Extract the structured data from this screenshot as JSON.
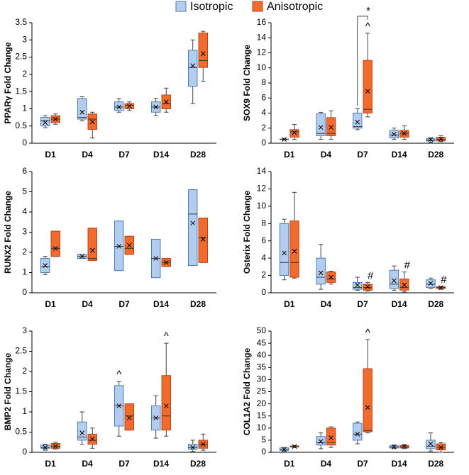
{
  "legend": [
    {
      "name": "Isotropic",
      "color": "#b4cdee"
    },
    {
      "name": "Anisotropic",
      "color": "#f26a2c"
    }
  ],
  "chart_data": [
    {
      "type": "box",
      "ylabel": "PPARγ Fold Change",
      "categories": [
        "D1",
        "D4",
        "D7",
        "D14",
        "D28"
      ],
      "ylim": [
        0,
        3.5
      ],
      "yticks": [
        0,
        0.5,
        1,
        1.5,
        2,
        2.5,
        3,
        3.5
      ],
      "series": [
        {
          "values": [
            {
              "min": 0.45,
              "q1": 0.5,
              "median": 0.65,
              "q3": 0.75,
              "max": 0.8,
              "mean": 0.6
            },
            {
              "min": 0.65,
              "q1": 0.7,
              "median": 0.75,
              "q3": 1.3,
              "max": 1.35,
              "mean": 0.9
            },
            {
              "min": 0.9,
              "q1": 0.95,
              "median": 1.05,
              "q3": 1.2,
              "max": 1.3,
              "mean": 1.05
            },
            {
              "min": 0.8,
              "q1": 0.9,
              "median": 1.05,
              "q3": 1.2,
              "max": 1.3,
              "mean": 1.05
            },
            {
              "min": 1.15,
              "q1": 1.65,
              "median": 2.2,
              "q3": 2.7,
              "max": 3.0,
              "mean": 2.25
            }
          ]
        },
        {
          "values": [
            {
              "min": 0.55,
              "q1": 0.6,
              "median": 0.7,
              "q3": 0.8,
              "max": 0.85,
              "mean": 0.7
            },
            {
              "min": 0.15,
              "q1": 0.4,
              "median": 0.7,
              "q3": 0.85,
              "max": 0.9,
              "mean": 0.62
            },
            {
              "min": 0.95,
              "q1": 1.0,
              "median": 1.1,
              "q3": 1.15,
              "max": 1.2,
              "mean": 1.08
            },
            {
              "min": 0.9,
              "q1": 1.0,
              "median": 1.15,
              "q3": 1.4,
              "max": 1.6,
              "mean": 1.2
            },
            {
              "min": 1.8,
              "q1": 2.2,
              "median": 2.4,
              "q3": 3.2,
              "max": 3.25,
              "mean": 2.6
            }
          ]
        }
      ]
    },
    {
      "type": "box",
      "ylabel": "SOX9 Fold Change",
      "categories": [
        "D1",
        "D4",
        "D7",
        "D14",
        "D28"
      ],
      "ylim": [
        0,
        16
      ],
      "yticks": [
        0,
        2,
        4,
        6,
        8,
        10,
        12,
        14,
        16
      ],
      "comparisons": [
        null,
        null,
        "*",
        null,
        null
      ],
      "series": [
        {
          "values": [
            {
              "min": 0.45,
              "q1": 0.5,
              "median": 0.5,
              "q3": 0.55,
              "max": 0.6,
              "mean": 0.5
            },
            {
              "min": 0.5,
              "q1": 1,
              "median": 1.3,
              "q3": 3.9,
              "max": 4.1,
              "mean": 2.1
            },
            {
              "min": 1.8,
              "q1": 2,
              "median": 2.2,
              "q3": 4,
              "max": 4.6,
              "mean": 2.8
            },
            {
              "min": 0.5,
              "q1": 0.7,
              "median": 1.1,
              "q3": 1.7,
              "max": 2,
              "mean": 1.2
            },
            {
              "min": 0.1,
              "q1": 0.3,
              "median": 0.4,
              "q3": 0.6,
              "max": 0.7,
              "mean": 0.5
            }
          ]
        },
        {
          "annotations": [
            null,
            null,
            "^",
            null,
            null
          ],
          "values": [
            {
              "min": 0.5,
              "q1": 0.8,
              "median": 1.5,
              "q3": 1.8,
              "max": 2.5,
              "mean": 1.4
            },
            {
              "min": 0.5,
              "q1": 1,
              "median": 1.3,
              "q3": 3.4,
              "max": 4.3,
              "mean": 2.1
            },
            {
              "min": 3.5,
              "q1": 4,
              "median": 4.5,
              "q3": 11,
              "max": 14.6,
              "mean": 6.9
            },
            {
              "min": 0.5,
              "q1": 0.8,
              "median": 1.3,
              "q3": 1.7,
              "max": 2.3,
              "mean": 1.3
            },
            {
              "min": 0.2,
              "q1": 0.3,
              "median": 0.5,
              "q3": 0.8,
              "max": 1,
              "mean": 0.55
            }
          ]
        }
      ]
    },
    {
      "type": "box",
      "ylabel": "RUNX2 Fold Change",
      "categories": [
        "D1",
        "D4",
        "D7",
        "D14",
        "D28"
      ],
      "ylim": [
        0,
        6
      ],
      "yticks": [
        0,
        1,
        2,
        3,
        4,
        5,
        6
      ],
      "series": [
        {
          "values": [
            {
              "min": 0.9,
              "q1": 1,
              "median": 1.3,
              "q3": 1.7,
              "max": 1.8,
              "mean": 1.35
            },
            {
              "min": 1.7,
              "q1": 1.7,
              "median": 1.8,
              "q3": 1.9,
              "max": 1.9,
              "mean": 1.8
            },
            {
              "min": 1.1,
              "q1": 1.1,
              "median": 2.3,
              "q3": 3.55,
              "max": 3.55,
              "mean": 2.3
            },
            {
              "min": 0.75,
              "q1": 0.75,
              "median": 1.7,
              "q3": 2.65,
              "max": 2.65,
              "mean": 1.7
            },
            {
              "min": 1.35,
              "q1": 1.35,
              "median": 3.9,
              "q3": 5.1,
              "max": 5.1,
              "mean": 3.45
            }
          ]
        },
        {
          "values": [
            {
              "min": 1.8,
              "q1": 1.8,
              "median": 2.2,
              "q3": 3.05,
              "max": 3.05,
              "mean": 2.2
            },
            {
              "min": 1.6,
              "q1": 1.6,
              "median": 1.7,
              "q3": 3.2,
              "max": 3.2,
              "mean": 2.1
            },
            {
              "min": 1.9,
              "q1": 1.9,
              "median": 2.2,
              "q3": 2.8,
              "max": 2.8,
              "mean": 2.35
            },
            {
              "min": 1.3,
              "q1": 1.3,
              "median": 1.5,
              "q3": 1.7,
              "max": 1.7,
              "mean": 1.5
            },
            {
              "min": 1.5,
              "q1": 1.5,
              "median": 2.75,
              "q3": 3.7,
              "max": 3.7,
              "mean": 2.65
            }
          ]
        }
      ]
    },
    {
      "type": "box",
      "ylabel": "Osterix Fold Change",
      "categories": [
        "D1",
        "D4",
        "D7",
        "D14",
        "D28"
      ],
      "ylim": [
        0,
        14
      ],
      "yticks": [
        0,
        2,
        4,
        6,
        8,
        10,
        12,
        14
      ],
      "series": [
        {
          "values": [
            {
              "min": 1.5,
              "q1": 2,
              "median": 3.5,
              "q3": 8,
              "max": 8.5,
              "mean": 4.6
            },
            {
              "min": 0.4,
              "q1": 1,
              "median": 1.8,
              "q3": 4,
              "max": 5.6,
              "mean": 2.3
            },
            {
              "min": 0.3,
              "q1": 0.4,
              "median": 0.6,
              "q3": 1.2,
              "max": 1.8,
              "mean": 0.9
            },
            {
              "min": 0.3,
              "q1": 0.5,
              "median": 1,
              "q3": 2.6,
              "max": 3.1,
              "mean": 1.4
            },
            {
              "min": 0.5,
              "q1": 0.6,
              "median": 1,
              "q3": 1.5,
              "max": 1.7,
              "mean": 1.1
            }
          ]
        },
        {
          "annotations": [
            null,
            null,
            "#",
            "#",
            "#"
          ],
          "values": [
            {
              "min": 1.7,
              "q1": 1.8,
              "median": 3.5,
              "q3": 8.3,
              "max": 11.6,
              "mean": 4.8
            },
            {
              "min": 1,
              "q1": 1.2,
              "median": 1.6,
              "q3": 2.4,
              "max": 2.5,
              "mean": 1.8
            },
            {
              "min": 0.2,
              "q1": 0.3,
              "median": 0.6,
              "q3": 1,
              "max": 1.2,
              "mean": 0.7
            },
            {
              "min": 0.1,
              "q1": 0.3,
              "median": 0.6,
              "q3": 1.6,
              "max": 2.4,
              "mean": 0.9
            },
            {
              "min": 0.4,
              "q1": 0.5,
              "median": 0.6,
              "q3": 0.7,
              "max": 0.75,
              "mean": 0.6
            }
          ]
        }
      ]
    },
    {
      "type": "box",
      "ylabel": "BMP2 Fold Change",
      "categories": [
        "D1",
        "D4",
        "D7",
        "D14",
        "D28"
      ],
      "ylim": [
        0,
        3
      ],
      "yticks": [
        0,
        0.5,
        1,
        1.5,
        2,
        2.5,
        3
      ],
      "series": [
        {
          "annotations": [
            null,
            null,
            "^",
            null,
            null
          ],
          "values": [
            {
              "min": 0.05,
              "q1": 0.1,
              "median": 0.12,
              "q3": 0.18,
              "max": 0.2,
              "mean": 0.12
            },
            {
              "min": 0.2,
              "q1": 0.3,
              "median": 0.38,
              "q3": 0.75,
              "max": 1.0,
              "mean": 0.48
            },
            {
              "min": 0.4,
              "q1": 0.65,
              "median": 1.15,
              "q3": 1.65,
              "max": 1.75,
              "mean": 1.15
            },
            {
              "min": 0.35,
              "q1": 0.55,
              "median": 0.85,
              "q3": 1.15,
              "max": 1.4,
              "mean": 0.85
            },
            {
              "min": 0.02,
              "q1": 0.08,
              "median": 0.12,
              "q3": 0.2,
              "max": 0.3,
              "mean": 0.12
            }
          ]
        },
        {
          "annotations": [
            null,
            null,
            null,
            "^",
            null
          ],
          "values": [
            {
              "min": 0.08,
              "q1": 0.1,
              "median": 0.15,
              "q3": 0.22,
              "max": 0.25,
              "mean": 0.15
            },
            {
              "min": 0.1,
              "q1": 0.2,
              "median": 0.3,
              "q3": 0.45,
              "max": 0.6,
              "mean": 0.33
            },
            {
              "min": 0.55,
              "q1": 0.55,
              "median": 0.9,
              "q3": 1.2,
              "max": 1.2,
              "mean": 0.85
            },
            {
              "min": 0.4,
              "q1": 0.55,
              "median": 0.9,
              "q3": 1.9,
              "max": 2.7,
              "mean": 1.15
            },
            {
              "min": 0.05,
              "q1": 0.1,
              "median": 0.2,
              "q3": 0.3,
              "max": 0.45,
              "mean": 0.2
            }
          ]
        }
      ]
    },
    {
      "type": "box",
      "ylabel": "COL1A2 Fold Change",
      "categories": [
        "D1",
        "D4",
        "D7",
        "D14",
        "D28"
      ],
      "ylim": [
        0,
        50
      ],
      "yticks": [
        0,
        5,
        10,
        15,
        20,
        25,
        30,
        35,
        40,
        45,
        50
      ],
      "series": [
        {
          "values": [
            {
              "min": 0.5,
              "q1": 0.8,
              "median": 1,
              "q3": 1.8,
              "max": 2,
              "mean": 1.2
            },
            {
              "min": 1.5,
              "q1": 3,
              "median": 4,
              "q3": 6.5,
              "max": 8,
              "mean": 4.5
            },
            {
              "min": 3.5,
              "q1": 5,
              "median": 7.5,
              "q3": 12,
              "max": 12.5,
              "mean": 7.5
            },
            {
              "min": 1.5,
              "q1": 1.8,
              "median": 2.2,
              "q3": 2.7,
              "max": 3,
              "mean": 2.3
            },
            {
              "min": 0.5,
              "q1": 1.5,
              "median": 2.5,
              "q3": 5,
              "max": 8,
              "mean": 3.5
            }
          ]
        },
        {
          "annotations": [
            null,
            null,
            "^",
            null,
            null
          ],
          "values": [
            {
              "min": 2,
              "q1": 2.2,
              "median": 2.4,
              "q3": 2.6,
              "max": 2.8,
              "mean": 2.4
            },
            {
              "min": 2,
              "q1": 3,
              "median": 4,
              "q3": 10,
              "max": 10.5,
              "mean": 6
            },
            {
              "min": 8,
              "q1": 8.5,
              "median": 9,
              "q3": 34.5,
              "max": 46.5,
              "mean": 18.5
            },
            {
              "min": 1.5,
              "q1": 1.8,
              "median": 2.3,
              "q3": 2.8,
              "max": 3.2,
              "mean": 2.5
            },
            {
              "min": 0,
              "q1": 1,
              "median": 2,
              "q3": 3.5,
              "max": 4,
              "mean": 2
            }
          ]
        }
      ]
    }
  ]
}
